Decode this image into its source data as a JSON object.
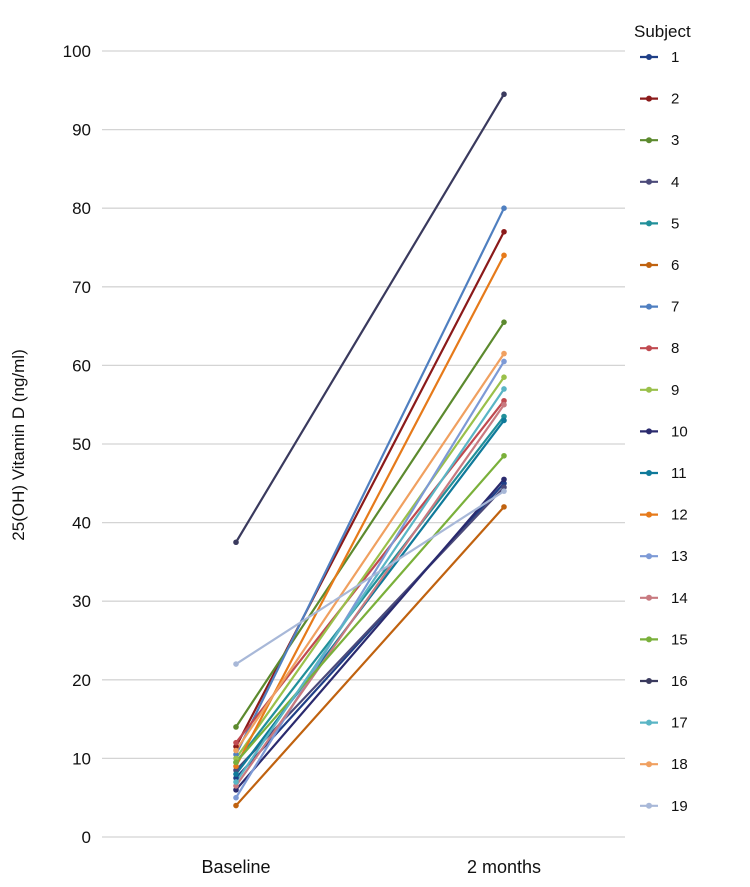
{
  "chart_data": {
    "type": "line",
    "ylabel": "25(OH) Vitamin D (ng/ml)",
    "xlabel": "",
    "categories": [
      "Baseline",
      "2 months"
    ],
    "ylim": [
      0,
      100
    ],
    "yticks": [
      0,
      10,
      20,
      30,
      40,
      50,
      60,
      70,
      80,
      90,
      100
    ],
    "grid": true,
    "legend": {
      "title": "Subject",
      "position": "right"
    },
    "series": [
      {
        "name": "1",
        "color": "#1f3f87",
        "values": [
          7.5,
          45.0
        ]
      },
      {
        "name": "2",
        "color": "#8b1a1a",
        "values": [
          11.5,
          77.0
        ]
      },
      {
        "name": "3",
        "color": "#5c8a2e",
        "values": [
          14.0,
          65.5
        ]
      },
      {
        "name": "4",
        "color": "#4b4a7a",
        "values": [
          8.5,
          44.5
        ]
      },
      {
        "name": "5",
        "color": "#21909a",
        "values": [
          9.5,
          53.5
        ]
      },
      {
        "name": "6",
        "color": "#c0620f",
        "values": [
          4.0,
          42.0
        ]
      },
      {
        "name": "7",
        "color": "#4f7fc0",
        "values": [
          10.5,
          80.0
        ]
      },
      {
        "name": "8",
        "color": "#c04a50",
        "values": [
          12.0,
          55.5
        ]
      },
      {
        "name": "9",
        "color": "#9ac04a",
        "values": [
          10.0,
          58.5
        ]
      },
      {
        "name": "10",
        "color": "#2a2a6e",
        "values": [
          6.0,
          45.5
        ]
      },
      {
        "name": "11",
        "color": "#0f7a9a",
        "values": [
          8.0,
          53.0
        ]
      },
      {
        "name": "12",
        "color": "#e67a1a",
        "values": [
          9.0,
          74.0
        ]
      },
      {
        "name": "13",
        "color": "#7d9ad6",
        "values": [
          5.0,
          60.5
        ]
      },
      {
        "name": "14",
        "color": "#c87a80",
        "values": [
          6.5,
          55.0
        ]
      },
      {
        "name": "15",
        "color": "#7ab03a",
        "values": [
          9.5,
          48.5
        ]
      },
      {
        "name": "16",
        "color": "#3a3a5e",
        "values": [
          37.5,
          94.5
        ]
      },
      {
        "name": "17",
        "color": "#5ab5c5",
        "values": [
          7.0,
          57.0
        ]
      },
      {
        "name": "18",
        "color": "#f0a060",
        "values": [
          11.0,
          61.5
        ]
      },
      {
        "name": "19",
        "color": "#a8b8d8",
        "values": [
          22.0,
          44.0
        ]
      }
    ]
  }
}
